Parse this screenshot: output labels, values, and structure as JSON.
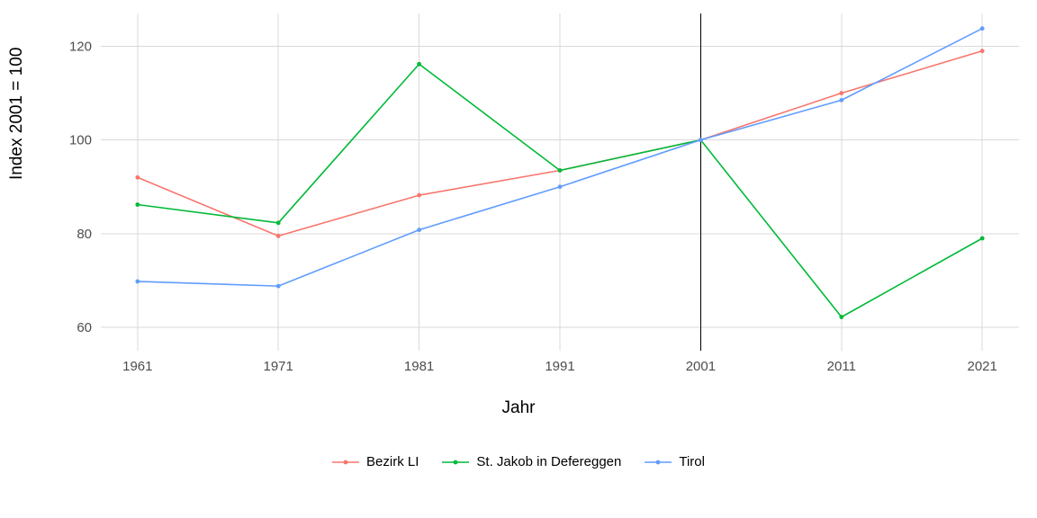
{
  "chart": {
    "type": "line",
    "background_color": "#ffffff",
    "panel_background": "#ffffff",
    "grid_color": "#d9d9d9",
    "axis_text_color": "#4d4d4d",
    "axis_title_color": "#000000",
    "x": {
      "title": "Jahr",
      "ticks": [
        1961,
        1971,
        1981,
        1991,
        2001,
        2011,
        2021
      ],
      "tick_labels": [
        "1961",
        "1971",
        "1981",
        "1991",
        "2001",
        "2011",
        "2021"
      ],
      "title_fontsize": 19,
      "tick_fontsize": 15
    },
    "y": {
      "title": "Index 2001 = 100",
      "ticks": [
        60,
        80,
        100,
        120
      ],
      "tick_labels": [
        "60",
        "80",
        "100",
        "120"
      ],
      "title_fontsize": 19,
      "tick_fontsize": 15,
      "ylim": [
        55,
        127
      ]
    },
    "reference_vline_x": 2001,
    "line_width": 1.6,
    "marker_size": 2.4,
    "series": [
      {
        "name": "Bezirk LI",
        "color": "#f8766d",
        "x": [
          1961,
          1971,
          1981,
          1991,
          2001,
          2011,
          2021
        ],
        "y": [
          92,
          79.5,
          88.2,
          93.5,
          100,
          110,
          119
        ]
      },
      {
        "name": "St. Jakob in Defereggen",
        "color": "#00ba38",
        "x": [
          1961,
          1971,
          1981,
          1991,
          2001,
          2011,
          2021
        ],
        "y": [
          86.2,
          82.3,
          116.2,
          93.5,
          100,
          62.2,
          79
        ]
      },
      {
        "name": "Tirol",
        "color": "#619cff",
        "x": [
          1961,
          1971,
          1981,
          1991,
          2001,
          2011,
          2021
        ],
        "y": [
          69.8,
          68.8,
          80.8,
          90,
          100,
          108.5,
          123.8
        ]
      }
    ],
    "legend": {
      "fontsize": 15,
      "position": "bottom"
    }
  }
}
